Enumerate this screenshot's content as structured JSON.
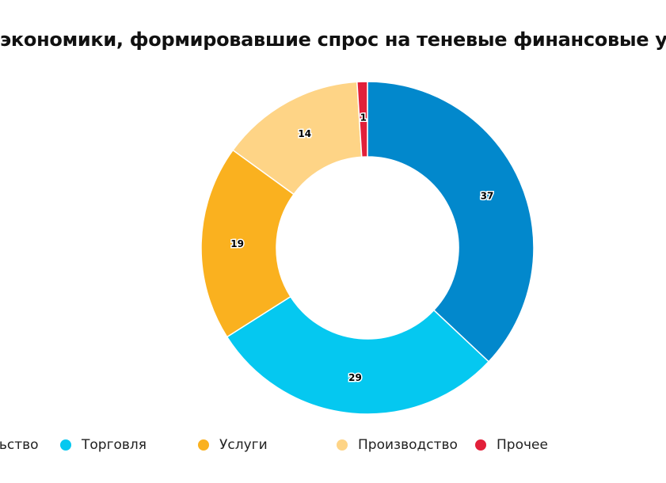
{
  "title": "экономики, формировавшие спрос на теневые финансовые усл",
  "chart_data": {
    "type": "pie",
    "donut": true,
    "categories": [
      "льство",
      "Торговля",
      "Услуги",
      "Производство",
      "Прочее"
    ],
    "values": [
      37,
      29,
      19,
      14,
      1
    ],
    "colors": [
      "#0288cc",
      "#05c8f0",
      "#fab11f",
      "#fed486",
      "#e2203a"
    ],
    "legend_position": "bottom"
  },
  "legend": {
    "items": [
      {
        "label": "льство",
        "color": "#0288cc"
      },
      {
        "label": "Торговля",
        "color": "#05c8f0"
      },
      {
        "label": "Услуги",
        "color": "#fab11f"
      },
      {
        "label": "Производство",
        "color": "#fed486"
      },
      {
        "label": "Прочее",
        "color": "#e2203a"
      }
    ]
  }
}
